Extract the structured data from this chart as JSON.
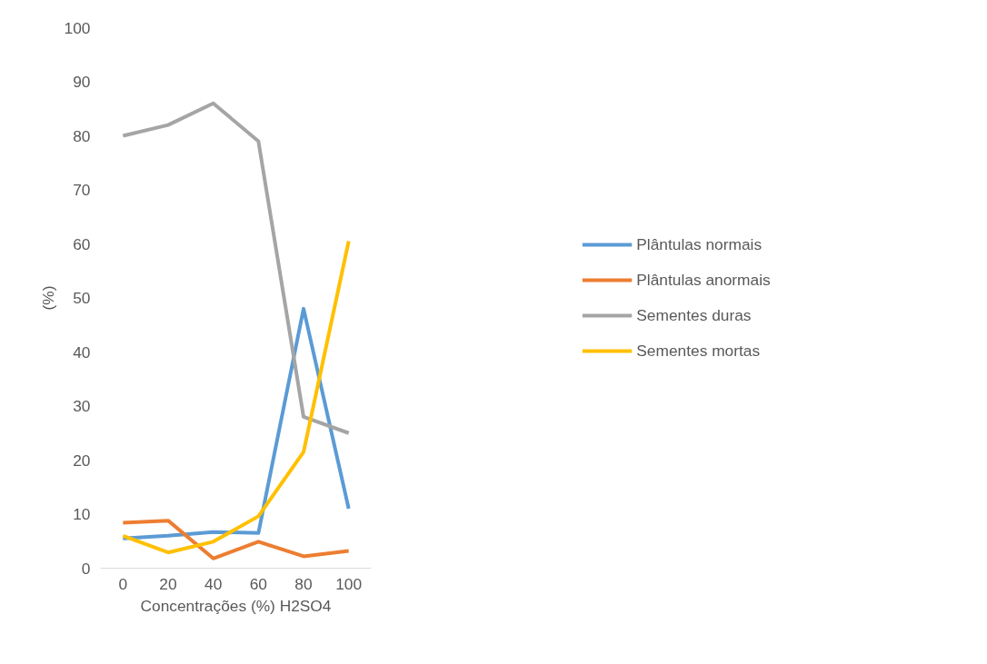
{
  "chart_data": {
    "type": "line",
    "xlabel": "Concentrações (%) H2SO4",
    "ylabel": "(%)",
    "categories": [
      "0",
      "20",
      "40",
      "60",
      "80",
      "100"
    ],
    "series": [
      {
        "name": "Plântulas normais",
        "color": "#5b9bd5",
        "values": [
          5.5,
          6,
          6.7,
          6.5,
          48,
          11
        ]
      },
      {
        "name": "Plântulas anormais",
        "color": "#ed7d31",
        "values": [
          8.4,
          8.8,
          1.8,
          4.9,
          2.2,
          3.2
        ]
      },
      {
        "name": "Sementes duras",
        "color": "#a5a5a5",
        "values": [
          80,
          82,
          86,
          79,
          28,
          25
        ]
      },
      {
        "name": "Sementes mortas",
        "color": "#ffc000",
        "values": [
          6,
          2.9,
          4.9,
          9.6,
          21.5,
          60.5
        ]
      }
    ],
    "ylim": [
      0,
      100
    ],
    "yticks": [
      0,
      10,
      20,
      30,
      40,
      50,
      60,
      70,
      80,
      90,
      100
    ],
    "grid": false,
    "legend": "right",
    "line_style": "solid",
    "marker": "none"
  }
}
